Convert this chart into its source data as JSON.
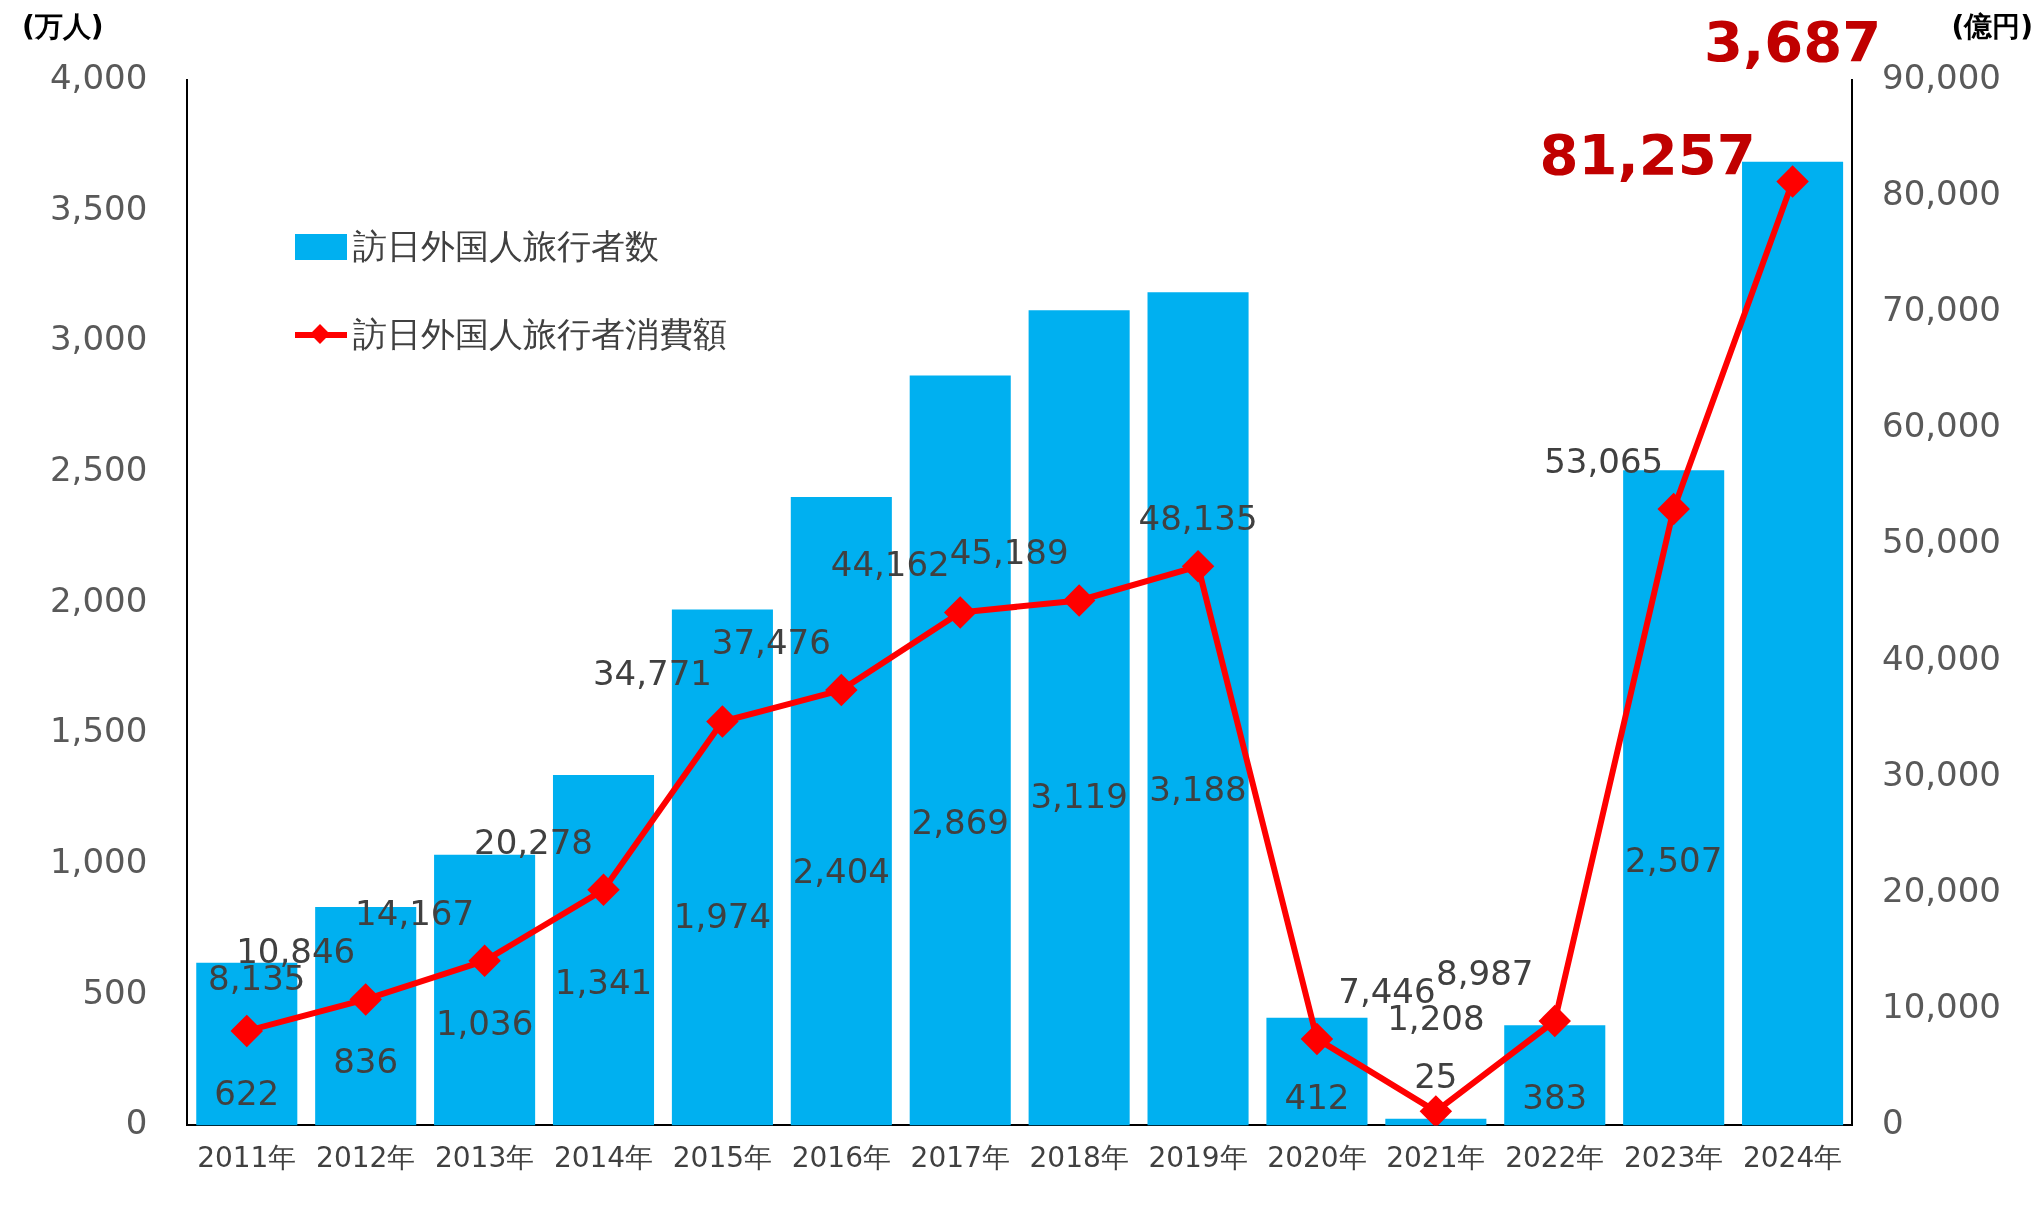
{
  "chart_data": {
    "type": "bar",
    "categories": [
      "2011年",
      "2012年",
      "2013年",
      "2014年",
      "2015年",
      "2016年",
      "2017年",
      "2018年",
      "2019年",
      "2020年",
      "2021年",
      "2022年",
      "2023年",
      "2024年"
    ],
    "ylabel": "(万人)",
    "y2label": "(億円)",
    "ylim": [
      0,
      4000
    ],
    "yticks": [
      {
        "value": 0,
        "label": "0"
      },
      {
        "value": 500,
        "label": "500"
      },
      {
        "value": 1000,
        "label": "1,000"
      },
      {
        "value": 1500,
        "label": "1,500"
      },
      {
        "value": 2000,
        "label": "2,000"
      },
      {
        "value": 2500,
        "label": "2,500"
      },
      {
        "value": 3000,
        "label": "3,000"
      },
      {
        "value": 3500,
        "label": "3,500"
      },
      {
        "value": 4000,
        "label": "4,000"
      }
    ],
    "y2lim": [
      0,
      90000
    ],
    "y2ticks": [
      {
        "value": 0,
        "label": "0"
      },
      {
        "value": 10000,
        "label": "10,000"
      },
      {
        "value": 20000,
        "label": "20,000"
      },
      {
        "value": 30000,
        "label": "30,000"
      },
      {
        "value": 40000,
        "label": "40,000"
      },
      {
        "value": 50000,
        "label": "50,000"
      },
      {
        "value": 60000,
        "label": "60,000"
      },
      {
        "value": 70000,
        "label": "70,000"
      },
      {
        "value": 80000,
        "label": "80,000"
      },
      {
        "value": 90000,
        "label": "90,000"
      }
    ],
    "grid": false,
    "legend": "top left",
    "marker": "diamond",
    "line_style": "solid",
    "series": [
      {
        "name": "訪日外国人旅行者数",
        "color": "#00b0f0",
        "values": [
          622,
          836,
          1036,
          1341,
          1974,
          2404,
          2869,
          3119,
          3188,
          412,
          25,
          383,
          2507,
          3687
        ],
        "value_labels": [
          "622",
          "836",
          "1,036",
          "1,341",
          "1,974",
          "2,404",
          "2,869",
          "3,119",
          "3,188",
          "412",
          "25",
          "383",
          "2,507",
          "3,687"
        ]
      },
      {
        "name": "訪日外国人旅行者消費額",
        "type": "line",
        "axis": "y2",
        "color": "#ff0000",
        "values": [
          8135,
          10846,
          14167,
          20278,
          34771,
          37476,
          44162,
          45189,
          48135,
          7446,
          1208,
          8987,
          53065,
          81257
        ],
        "value_labels": [
          "8,135",
          "10,846",
          "14,167",
          "20,278",
          "34,771",
          "37,476",
          "44,162",
          "45,189",
          "48,135",
          "7,446",
          "1,208",
          "8,987",
          "53,065",
          "81,257"
        ]
      }
    ]
  }
}
